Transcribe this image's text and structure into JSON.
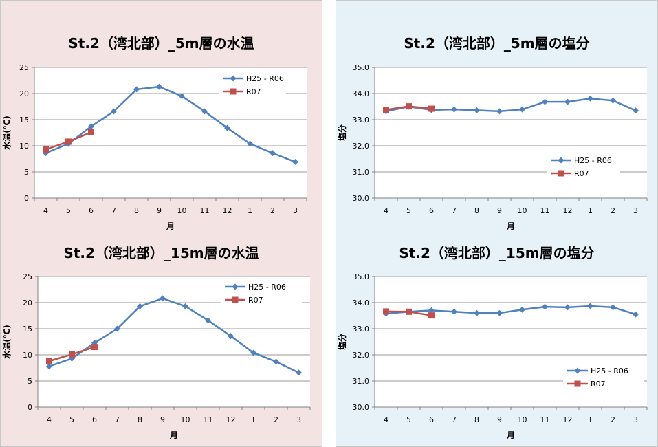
{
  "colors": {
    "series1": "#4f81bd",
    "series2": "#c0504d",
    "grid": "#9a9a9a",
    "plot_bg": "#ffffff"
  },
  "chart_data": [
    {
      "type": "line",
      "title": "St.2（湾北部）_5m層の水温",
      "xlabel": "月",
      "ylabel": "水温(℃)",
      "categories": [
        "4",
        "5",
        "6",
        "7",
        "8",
        "9",
        "10",
        "11",
        "12",
        "1",
        "2",
        "3"
      ],
      "ylim": [
        0,
        25
      ],
      "yticks": [
        "0",
        "5",
        "10",
        "15",
        "20",
        "25"
      ],
      "grid": true,
      "legend_position": "top-right",
      "series": [
        {
          "name": "H25 - R06",
          "marker": "diamond",
          "values": [
            8.6,
            10.4,
            13.7,
            16.6,
            20.8,
            21.3,
            19.5,
            16.6,
            13.4,
            10.4,
            8.6,
            6.9
          ]
        },
        {
          "name": "R07",
          "marker": "square",
          "values": [
            9.3,
            10.8,
            12.6,
            null,
            null,
            null,
            null,
            null,
            null,
            null,
            null,
            null
          ]
        }
      ]
    },
    {
      "type": "line",
      "title": "St.2（湾北部）_5m層の塩分",
      "xlabel": "月",
      "ylabel": "塩分",
      "categories": [
        "4",
        "5",
        "6",
        "7",
        "8",
        "9",
        "10",
        "11",
        "12",
        "1",
        "2",
        "3"
      ],
      "ylim": [
        30.0,
        35.0
      ],
      "yticks": [
        "30.0",
        "31.0",
        "32.0",
        "33.0",
        "34.0",
        "35.0"
      ],
      "grid": true,
      "legend_position": "bottom-right",
      "series": [
        {
          "name": "H25 - R06",
          "marker": "diamond",
          "values": [
            33.32,
            33.5,
            33.37,
            33.39,
            33.36,
            33.32,
            33.39,
            33.68,
            33.68,
            33.81,
            33.73,
            33.35
          ]
        },
        {
          "name": "R07",
          "marker": "square",
          "values": [
            33.38,
            33.51,
            33.42,
            null,
            null,
            null,
            null,
            null,
            null,
            null,
            null,
            null
          ]
        }
      ]
    },
    {
      "type": "line",
      "title": "St.2（湾北部）_15m層の水温",
      "xlabel": "月",
      "ylabel": "水温(℃)",
      "categories": [
        "4",
        "5",
        "6",
        "7",
        "8",
        "9",
        "10",
        "11",
        "12",
        "1",
        "2",
        "3"
      ],
      "ylim": [
        0,
        25
      ],
      "yticks": [
        "0",
        "5",
        "10",
        "15",
        "20",
        "25"
      ],
      "grid": true,
      "legend_position": "top-right",
      "series": [
        {
          "name": "H25 - R06",
          "marker": "diamond",
          "values": [
            7.8,
            9.3,
            12.3,
            15.0,
            19.3,
            20.8,
            19.3,
            16.6,
            13.6,
            10.4,
            8.7,
            6.6
          ]
        },
        {
          "name": "R07",
          "marker": "square",
          "values": [
            8.8,
            10.1,
            11.5,
            null,
            null,
            null,
            null,
            null,
            null,
            null,
            null,
            null
          ]
        }
      ]
    },
    {
      "type": "line",
      "title": "St.2（湾北部）_15m層の塩分",
      "xlabel": "月",
      "ylabel": "塩分",
      "categories": [
        "4",
        "5",
        "6",
        "7",
        "8",
        "9",
        "10",
        "11",
        "12",
        "1",
        "2",
        "3"
      ],
      "ylim": [
        30.0,
        35.0
      ],
      "yticks": [
        "30.0",
        "31.0",
        "32.0",
        "33.0",
        "34.0",
        "35.0"
      ],
      "grid": true,
      "legend_position": "bottom-right",
      "series": [
        {
          "name": "H25 - R06",
          "marker": "diamond",
          "values": [
            33.58,
            33.65,
            33.7,
            33.65,
            33.6,
            33.6,
            33.73,
            33.84,
            33.82,
            33.87,
            33.82,
            33.55
          ]
        },
        {
          "name": "R07",
          "marker": "square",
          "values": [
            33.66,
            33.65,
            33.51,
            null,
            null,
            null,
            null,
            null,
            null,
            null,
            null,
            null
          ]
        }
      ]
    }
  ]
}
